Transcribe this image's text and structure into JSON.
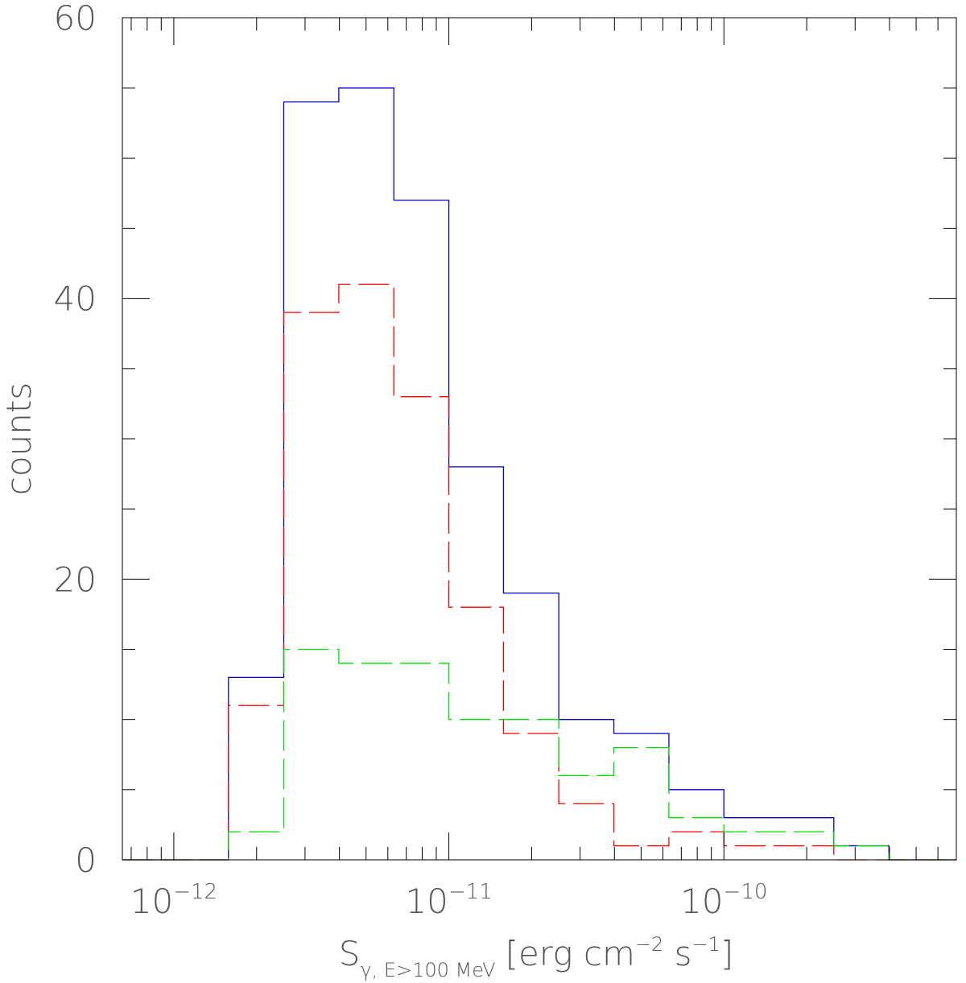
{
  "chart_data": {
    "type": "histogram",
    "xscale": "log",
    "xlim": [
      6.5e-13,
      7e-10
    ],
    "ylim": [
      0,
      60
    ],
    "grid": false,
    "xlabel": {
      "main": "S",
      "subscript": "γ,  E>100 MeV",
      "units_prefix": "[erg cm",
      "exp1": "−2",
      "units_mid": " s",
      "exp2": "−1",
      "units_suffix": "]"
    },
    "ylabel": "counts",
    "x_tick_labels": [
      {
        "value": 1e-12,
        "base": "10",
        "exponent": "−12"
      },
      {
        "value": 1e-11,
        "base": "10",
        "exponent": "−11"
      },
      {
        "value": 1e-10,
        "base": "10",
        "exponent": "−10"
      }
    ],
    "y_tick_labels": [
      {
        "value": 0,
        "label": "0"
      },
      {
        "value": 20,
        "label": "20"
      },
      {
        "value": 40,
        "label": "40"
      },
      {
        "value": 60,
        "label": "60"
      }
    ],
    "bin_edges": [
      6.5e-13,
      1e-12,
      1.58e-12,
      2.51e-12,
      3.98e-12,
      6.31e-12,
      1e-11,
      1.58e-11,
      2.51e-11,
      3.98e-11,
      6.31e-11,
      1e-10,
      1.58e-10,
      2.51e-10,
      3.98e-10,
      6.31e-10,
      7e-10
    ],
    "series": [
      {
        "color": "#0000cc",
        "style": "solid",
        "counts": [
          0,
          0,
          13,
          54,
          55,
          47,
          28,
          19,
          10,
          9,
          5,
          3,
          3,
          1,
          0,
          0
        ]
      },
      {
        "color": "#ff0000",
        "style": "dashed",
        "counts": [
          0,
          0,
          11,
          39,
          41,
          33,
          18,
          9,
          4,
          1,
          2,
          1,
          1,
          0,
          0,
          0
        ]
      },
      {
        "color": "#00dd00",
        "style": "dashed",
        "counts": [
          0,
          0,
          2,
          15,
          14,
          14,
          10,
          10,
          6,
          8,
          3,
          2,
          2,
          1,
          0,
          0
        ]
      }
    ]
  }
}
